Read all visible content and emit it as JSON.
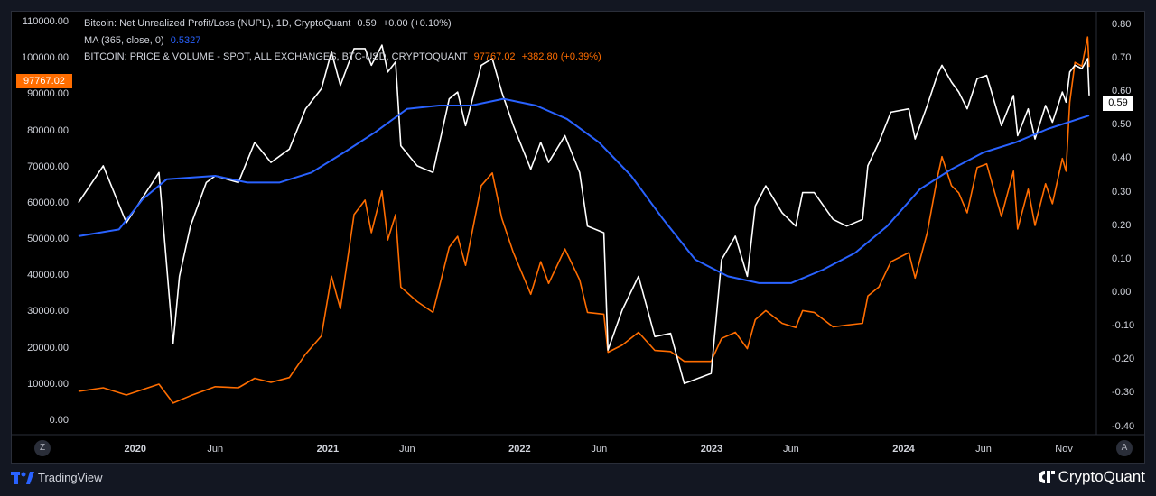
{
  "legend": {
    "nupl": {
      "title": "Bitcoin: Net Unrealized Profit/Loss (NUPL), 1D, CryptoQuant",
      "value": "0.59",
      "change": "+0.00 (+0.10%)"
    },
    "ma": {
      "title": "MA (365, close, 0)",
      "value": "0.5327"
    },
    "price": {
      "title": "BITCOIN: PRICE & VOLUME - SPOT, ALL EXCHANGES, BTC-USD, CRYPTOQUANT",
      "value": "97767.02",
      "change": "+382.80 (+0.39%)"
    }
  },
  "badges": {
    "price_last": "97767.02",
    "nupl_last": "0.59",
    "zoom_left": "Z",
    "auto_right": "A"
  },
  "branding": {
    "tradingview": "TradingView",
    "cryptoquant": "CryptoQuant"
  },
  "colors": {
    "price": "#ff6d00",
    "nupl": "#ffffff",
    "ma": "#2962ff",
    "background": "#000000"
  },
  "chart_data": {
    "type": "line",
    "x_tick_labels": [
      {
        "date": "2020-01-01",
        "label": "2020",
        "bold": true
      },
      {
        "date": "2020-06-01",
        "label": "Jun"
      },
      {
        "date": "2021-01-01",
        "label": "2021",
        "bold": true
      },
      {
        "date": "2021-06-01",
        "label": "Jun"
      },
      {
        "date": "2022-01-01",
        "label": "2022",
        "bold": true
      },
      {
        "date": "2022-06-01",
        "label": "Jun"
      },
      {
        "date": "2023-01-01",
        "label": "2023",
        "bold": true
      },
      {
        "date": "2023-06-01",
        "label": "Jun"
      },
      {
        "date": "2024-01-01",
        "label": "2024",
        "bold": true
      },
      {
        "date": "2024-06-01",
        "label": "Jun"
      },
      {
        "date": "2024-11-01",
        "label": "Nov"
      }
    ],
    "x_range": [
      "2019-09-10",
      "2024-12-31"
    ],
    "left_axis": {
      "ylim": [
        -3500,
        113000
      ],
      "ticks": [
        "0.00",
        "10000.00",
        "20000.00",
        "30000.00",
        "40000.00",
        "50000.00",
        "60000.00",
        "70000.00",
        "80000.00",
        "90000.00",
        "100000.00",
        "110000.00"
      ]
    },
    "right_axis": {
      "ylim": [
        -0.42,
        0.84
      ],
      "ticks": [
        "-0.40",
        "-0.30",
        "-0.20",
        "-0.10",
        "0.00",
        "0.10",
        "0.20",
        "0.30",
        "0.40",
        "0.50",
        "0.60",
        "0.70",
        "0.80"
      ]
    },
    "series": [
      {
        "name": "BITCOIN: PRICE & VOLUME - SPOT, ALL EXCHANGES, BTC-USD, CRYPTOQUANT",
        "axis": "left",
        "points": [
          [
            "2019-09-15",
            8200
          ],
          [
            "2019-11-01",
            9200
          ],
          [
            "2019-12-15",
            7200
          ],
          [
            "2020-02-15",
            10200
          ],
          [
            "2020-03-13",
            5000
          ],
          [
            "2020-04-15",
            7000
          ],
          [
            "2020-06-01",
            9500
          ],
          [
            "2020-07-15",
            9200
          ],
          [
            "2020-08-15",
            11800
          ],
          [
            "2020-09-15",
            10700
          ],
          [
            "2020-10-20",
            12000
          ],
          [
            "2020-11-20",
            18500
          ],
          [
            "2020-12-20",
            23500
          ],
          [
            "2021-01-08",
            40000
          ],
          [
            "2021-01-25",
            31000
          ],
          [
            "2021-02-20",
            57000
          ],
          [
            "2021-03-13",
            61000
          ],
          [
            "2021-03-25",
            52000
          ],
          [
            "2021-04-14",
            63500
          ],
          [
            "2021-04-25",
            50000
          ],
          [
            "2021-05-10",
            57000
          ],
          [
            "2021-05-20",
            37000
          ],
          [
            "2021-06-20",
            33000
          ],
          [
            "2021-07-20",
            30000
          ],
          [
            "2021-08-20",
            48000
          ],
          [
            "2021-09-05",
            51000
          ],
          [
            "2021-09-20",
            43000
          ],
          [
            "2021-10-20",
            65000
          ],
          [
            "2021-11-10",
            68500
          ],
          [
            "2021-11-28",
            56000
          ],
          [
            "2021-12-20",
            46500
          ],
          [
            "2022-01-22",
            35000
          ],
          [
            "2022-02-10",
            44000
          ],
          [
            "2022-02-25",
            38000
          ],
          [
            "2022-03-28",
            47500
          ],
          [
            "2022-04-25",
            39000
          ],
          [
            "2022-05-10",
            30000
          ],
          [
            "2022-06-10",
            29500
          ],
          [
            "2022-06-18",
            19000
          ],
          [
            "2022-07-15",
            21000
          ],
          [
            "2022-08-15",
            24500
          ],
          [
            "2022-09-15",
            19500
          ],
          [
            "2022-10-15",
            19200
          ],
          [
            "2022-11-10",
            16500
          ],
          [
            "2022-12-31",
            16500
          ],
          [
            "2023-01-20",
            22800
          ],
          [
            "2023-02-15",
            24500
          ],
          [
            "2023-03-10",
            20000
          ],
          [
            "2023-03-25",
            28000
          ],
          [
            "2023-04-14",
            30500
          ],
          [
            "2023-05-15",
            27000
          ],
          [
            "2023-06-10",
            25800
          ],
          [
            "2023-06-23",
            30500
          ],
          [
            "2023-07-15",
            30000
          ],
          [
            "2023-08-20",
            26000
          ],
          [
            "2023-09-15",
            26500
          ],
          [
            "2023-10-15",
            27000
          ],
          [
            "2023-10-25",
            34500
          ],
          [
            "2023-11-15",
            37000
          ],
          [
            "2023-12-08",
            44000
          ],
          [
            "2024-01-11",
            46500
          ],
          [
            "2024-01-23",
            39500
          ],
          [
            "2024-02-15",
            52000
          ],
          [
            "2024-03-05",
            67000
          ],
          [
            "2024-03-14",
            73000
          ],
          [
            "2024-04-01",
            65000
          ],
          [
            "2024-04-15",
            63000
          ],
          [
            "2024-05-01",
            57500
          ],
          [
            "2024-05-20",
            70000
          ],
          [
            "2024-06-07",
            71000
          ],
          [
            "2024-07-05",
            56500
          ],
          [
            "2024-07-28",
            69000
          ],
          [
            "2024-08-05",
            53000
          ],
          [
            "2024-08-25",
            64000
          ],
          [
            "2024-09-07",
            54000
          ],
          [
            "2024-09-27",
            65500
          ],
          [
            "2024-10-10",
            60000
          ],
          [
            "2024-10-29",
            72500
          ],
          [
            "2024-11-05",
            69000
          ],
          [
            "2024-11-12",
            88000
          ],
          [
            "2024-11-22",
            99000
          ],
          [
            "2024-12-05",
            98000
          ],
          [
            "2024-12-16",
            106000
          ],
          [
            "2024-12-19",
            97767
          ]
        ]
      },
      {
        "name": "Bitcoin: Net Unrealized Profit/Loss (NUPL), 1D, CryptoQuant",
        "axis": "right",
        "points": [
          [
            "2019-09-15",
            0.27
          ],
          [
            "2019-11-01",
            0.38
          ],
          [
            "2019-12-15",
            0.21
          ],
          [
            "2020-02-15",
            0.36
          ],
          [
            "2020-03-13",
            -0.15
          ],
          [
            "2020-03-25",
            0.05
          ],
          [
            "2020-04-15",
            0.2
          ],
          [
            "2020-05-15",
            0.33
          ],
          [
            "2020-06-01",
            0.35
          ],
          [
            "2020-07-15",
            0.33
          ],
          [
            "2020-08-15",
            0.45
          ],
          [
            "2020-09-15",
            0.39
          ],
          [
            "2020-10-20",
            0.43
          ],
          [
            "2020-11-20",
            0.55
          ],
          [
            "2020-12-20",
            0.61
          ],
          [
            "2021-01-08",
            0.72
          ],
          [
            "2021-01-25",
            0.62
          ],
          [
            "2021-02-20",
            0.73
          ],
          [
            "2021-03-13",
            0.73
          ],
          [
            "2021-03-25",
            0.68
          ],
          [
            "2021-04-14",
            0.74
          ],
          [
            "2021-04-25",
            0.66
          ],
          [
            "2021-05-10",
            0.69
          ],
          [
            "2021-05-20",
            0.44
          ],
          [
            "2021-06-20",
            0.38
          ],
          [
            "2021-07-20",
            0.36
          ],
          [
            "2021-08-20",
            0.58
          ],
          [
            "2021-09-05",
            0.6
          ],
          [
            "2021-09-20",
            0.5
          ],
          [
            "2021-10-20",
            0.68
          ],
          [
            "2021-11-10",
            0.7
          ],
          [
            "2021-11-28",
            0.6
          ],
          [
            "2021-12-20",
            0.5
          ],
          [
            "2022-01-22",
            0.37
          ],
          [
            "2022-02-10",
            0.45
          ],
          [
            "2022-02-25",
            0.39
          ],
          [
            "2022-03-28",
            0.47
          ],
          [
            "2022-04-25",
            0.36
          ],
          [
            "2022-05-10",
            0.2
          ],
          [
            "2022-06-10",
            0.18
          ],
          [
            "2022-06-18",
            -0.17
          ],
          [
            "2022-07-15",
            -0.05
          ],
          [
            "2022-08-15",
            0.05
          ],
          [
            "2022-09-15",
            -0.13
          ],
          [
            "2022-10-15",
            -0.12
          ],
          [
            "2022-11-10",
            -0.27
          ],
          [
            "2022-12-31",
            -0.24
          ],
          [
            "2023-01-20",
            0.1
          ],
          [
            "2023-02-15",
            0.17
          ],
          [
            "2023-03-10",
            0.05
          ],
          [
            "2023-03-25",
            0.26
          ],
          [
            "2023-04-14",
            0.32
          ],
          [
            "2023-05-15",
            0.24
          ],
          [
            "2023-06-10",
            0.2
          ],
          [
            "2023-06-23",
            0.3
          ],
          [
            "2023-07-15",
            0.3
          ],
          [
            "2023-08-20",
            0.22
          ],
          [
            "2023-09-15",
            0.2
          ],
          [
            "2023-10-15",
            0.22
          ],
          [
            "2023-10-25",
            0.38
          ],
          [
            "2023-11-15",
            0.45
          ],
          [
            "2023-12-08",
            0.54
          ],
          [
            "2024-01-11",
            0.55
          ],
          [
            "2024-01-23",
            0.46
          ],
          [
            "2024-02-15",
            0.56
          ],
          [
            "2024-03-05",
            0.65
          ],
          [
            "2024-03-14",
            0.68
          ],
          [
            "2024-04-01",
            0.63
          ],
          [
            "2024-04-15",
            0.6
          ],
          [
            "2024-05-01",
            0.55
          ],
          [
            "2024-05-20",
            0.64
          ],
          [
            "2024-06-07",
            0.65
          ],
          [
            "2024-07-05",
            0.5
          ],
          [
            "2024-07-28",
            0.59
          ],
          [
            "2024-08-05",
            0.47
          ],
          [
            "2024-08-25",
            0.55
          ],
          [
            "2024-09-07",
            0.46
          ],
          [
            "2024-09-27",
            0.56
          ],
          [
            "2024-10-10",
            0.51
          ],
          [
            "2024-10-29",
            0.6
          ],
          [
            "2024-11-05",
            0.57
          ],
          [
            "2024-11-12",
            0.66
          ],
          [
            "2024-11-22",
            0.68
          ],
          [
            "2024-12-05",
            0.67
          ],
          [
            "2024-12-16",
            0.7
          ],
          [
            "2024-12-19",
            0.59
          ]
        ]
      },
      {
        "name": "MA (365, close, 0)",
        "axis": "right",
        "points": [
          [
            "2019-09-15",
            0.17
          ],
          [
            "2019-12-01",
            0.19
          ],
          [
            "2020-01-15",
            0.28
          ],
          [
            "2020-03-01",
            0.34
          ],
          [
            "2020-06-01",
            0.35
          ],
          [
            "2020-08-01",
            0.33
          ],
          [
            "2020-10-01",
            0.33
          ],
          [
            "2020-12-01",
            0.36
          ],
          [
            "2021-02-01",
            0.42
          ],
          [
            "2021-04-01",
            0.48
          ],
          [
            "2021-06-01",
            0.55
          ],
          [
            "2021-08-01",
            0.56
          ],
          [
            "2021-10-01",
            0.56
          ],
          [
            "2021-12-01",
            0.58
          ],
          [
            "2022-02-01",
            0.56
          ],
          [
            "2022-04-01",
            0.52
          ],
          [
            "2022-06-01",
            0.45
          ],
          [
            "2022-08-01",
            0.35
          ],
          [
            "2022-10-01",
            0.22
          ],
          [
            "2022-12-01",
            0.1
          ],
          [
            "2023-02-01",
            0.05
          ],
          [
            "2023-04-01",
            0.03
          ],
          [
            "2023-06-01",
            0.03
          ],
          [
            "2023-08-01",
            0.07
          ],
          [
            "2023-10-01",
            0.12
          ],
          [
            "2023-12-01",
            0.2
          ],
          [
            "2024-02-01",
            0.31
          ],
          [
            "2024-04-01",
            0.37
          ],
          [
            "2024-06-01",
            0.42
          ],
          [
            "2024-08-01",
            0.45
          ],
          [
            "2024-10-01",
            0.49
          ],
          [
            "2024-12-19",
            0.53
          ]
        ]
      }
    ],
    "grid": false,
    "legend_position": "top-left"
  }
}
